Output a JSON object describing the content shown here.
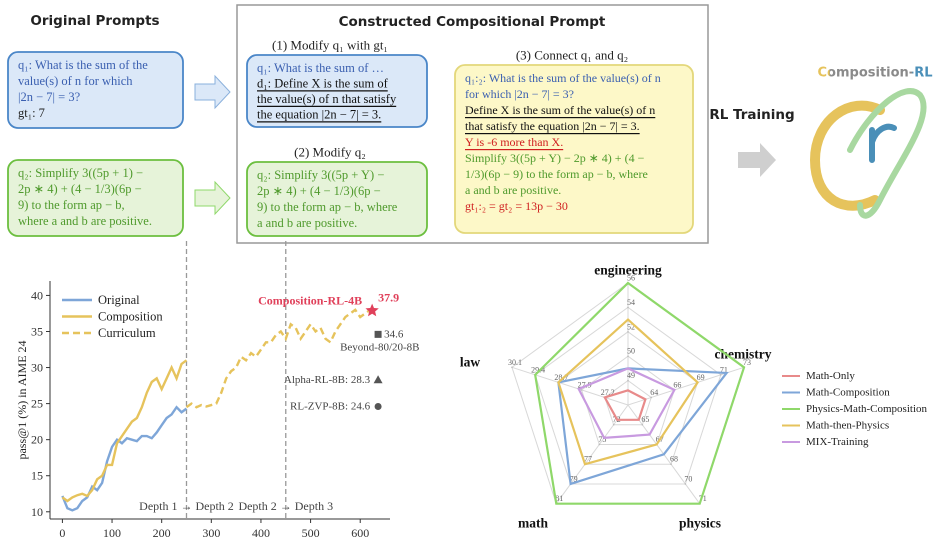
{
  "diagram": {
    "original_title": "Original Prompts",
    "constructed_title": "Constructed Compositional Prompt",
    "step1": "(1) Modify q₁ with gt₁",
    "step2": "(2) Modify q₂",
    "step3": "(3) Connect q₁ and q₂",
    "rl_training": "RL Training",
    "logo": "Composition-RL",
    "boxes": [
      {
        "fill": "#dbe8f8",
        "stroke": "#4a86c8",
        "lines": [
          {
            "text": "q₁: What is the sum of the",
            "color": "#3a5fb0"
          },
          {
            "text": "value(s) of n for which",
            "color": "#3a5fb0"
          },
          {
            "text": "|2n − 7| = 3?",
            "color": "#3a5fb0"
          },
          {
            "text": "gt₁:          7",
            "color": "#222"
          }
        ]
      },
      {
        "fill": "#e6f3d9",
        "stroke": "#6cbf3f",
        "lines": [
          {
            "text": "q₂: Simplify 3((5p + 1) −",
            "color": "#4f9a2c"
          },
          {
            "text": "2p ∗ 4) + (4 − 1/3)(6p −",
            "color": "#4f9a2c"
          },
          {
            "text": "9) to the form ap − b,",
            "color": "#4f9a2c"
          },
          {
            "text": "where a and b are positive.",
            "color": "#4f9a2c"
          }
        ]
      },
      {
        "fill": "#dbe8f8",
        "stroke": "#4a86c8",
        "lines": [
          {
            "text": "q₁: What is the sum of …",
            "color": "#3a5fb0"
          },
          {
            "text": "d₁: Define X is the sum of",
            "color": "#111",
            "underline": true
          },
          {
            "text": "the value(s) of n that satisfy",
            "color": "#111",
            "underline": true
          },
          {
            "text": "the equation |2n − 7| = 3.",
            "color": "#111",
            "underline": true
          }
        ]
      },
      {
        "fill": "#e6f3d9",
        "stroke": "#6cbf3f",
        "lines": [
          {
            "text": "q₂: Simplify 3((5p + Y) −",
            "color": "#4f9a2c"
          },
          {
            "text": "2p ∗ 4) + (4 − 1/3)(6p −",
            "color": "#4f9a2c"
          },
          {
            "text": "9) to the form ap − b, where",
            "color": "#4f9a2c"
          },
          {
            "text": "a and b are positive.",
            "color": "#4f9a2c"
          }
        ]
      },
      {
        "fill": "#fdf8c8",
        "stroke": "#e3d77a",
        "lines": [
          {
            "text": "q₁:₂: What is the sum of the value(s) of n",
            "color": "#3a5fb0"
          },
          {
            "text": "for which |2n − 7| = 3?",
            "color": "#3a5fb0"
          },
          {
            "text": "Define X is the sum of the value(s) of n",
            "color": "#111",
            "underline": true
          },
          {
            "text": "that satisfy the equation |2n − 7| = 3.",
            "color": "#111",
            "underline": true
          },
          {
            "text": "Y is -6 more than X.",
            "color": "#d02020",
            "underline": true
          },
          {
            "text": "Simplify 3((5p + Y) − 2p ∗ 4) + (4 −",
            "color": "#4f9a2c"
          },
          {
            "text": "1/3)(6p − 9) to the form ap − b, where",
            "color": "#4f9a2c"
          },
          {
            "text": "a and b are positive.",
            "color": "#4f9a2c"
          },
          {
            "text": "gt₁:₂ = gt₂ = 13p − 30",
            "color": "#d02020"
          }
        ]
      }
    ]
  },
  "chart_data": [
    {
      "type": "line",
      "ylabel": "pass@1 (%) in AIME 24",
      "xlim": [
        -25,
        660
      ],
      "ylim": [
        9,
        42
      ],
      "xticks": [
        0,
        100,
        200,
        300,
        400,
        500,
        600
      ],
      "yticks": [
        10,
        15,
        20,
        25,
        30,
        35,
        40
      ],
      "grid": false,
      "legend": "upper left",
      "series": [
        {
          "name": "Original",
          "color": "#7ea6d8",
          "dash": false,
          "x": [
            0,
            10,
            20,
            30,
            40,
            50,
            60,
            70,
            80,
            90,
            100,
            110,
            120,
            130,
            140,
            150,
            160,
            170,
            180,
            190,
            200,
            210,
            220,
            230,
            240,
            250
          ],
          "values": [
            12.2,
            10.5,
            10.2,
            10.5,
            11.5,
            12,
            13.5,
            13,
            14,
            17,
            19,
            20,
            19.5,
            20.2,
            20,
            19.8,
            20.5,
            20.5,
            20.2,
            21,
            22,
            23,
            23.5,
            24.5,
            23.8,
            24.3
          ]
        },
        {
          "name": "Composition",
          "color": "#e6c35c",
          "dash": false,
          "x": [
            0,
            10,
            20,
            30,
            40,
            50,
            60,
            70,
            80,
            90,
            100,
            110,
            120,
            130,
            140,
            150,
            160,
            170,
            180,
            190,
            200,
            210,
            220,
            230,
            240,
            250
          ],
          "values": [
            12,
            11.5,
            12,
            12.3,
            12.5,
            12.2,
            13,
            14.5,
            15,
            16.5,
            16.5,
            19.5,
            20.5,
            21.5,
            22.5,
            23,
            24.5,
            26.5,
            28,
            28.5,
            27,
            28.5,
            30,
            28.5,
            30.5,
            31
          ]
        },
        {
          "name": "Curriculum",
          "color": "#e6c35c",
          "dash": true,
          "x": [
            250,
            260,
            270,
            280,
            290,
            300,
            310,
            320,
            330,
            340,
            350,
            360,
            370,
            380,
            390,
            400,
            410,
            420,
            430,
            440,
            450,
            460,
            470,
            480,
            490,
            500,
            510,
            520,
            530,
            540,
            550,
            560,
            570,
            580,
            590,
            600,
            610,
            620
          ],
          "values": [
            24.5,
            25,
            24.5,
            24.8,
            24.6,
            24.8,
            25,
            26.5,
            28.5,
            29.5,
            30,
            31.5,
            31,
            32,
            31.5,
            32.5,
            33.5,
            33.5,
            34.5,
            35,
            34,
            36,
            35.5,
            34,
            35,
            36,
            35,
            35.5,
            34,
            33.5,
            35,
            36,
            37,
            37.5,
            38,
            37,
            37.5,
            38
          ]
        }
      ],
      "vlines": [
        {
          "x": 250,
          "label": "Depth 1 → Depth 2"
        },
        {
          "x": 450,
          "label": "Depth 2 → Depth 3"
        }
      ],
      "points": [
        {
          "label": "Composition-RL-4B",
          "value_label": "37.9",
          "x": 624,
          "y": 37.9,
          "marker": "star",
          "color": "#e0405a"
        },
        {
          "label": "Beyond-80/20-8B",
          "value_label": "34.6",
          "x": 636,
          "y": 34.6,
          "marker": "square",
          "color": "#555555"
        },
        {
          "label": "Alpha-RL-8B: 28.3",
          "x": 636,
          "y": 28.3,
          "marker": "triangle",
          "color": "#555555"
        },
        {
          "label": "RL-ZVP-8B: 24.6",
          "x": 636,
          "y": 24.6,
          "marker": "circle",
          "color": "#555555"
        }
      ]
    },
    {
      "type": "radar",
      "legend": "right",
      "axes": [
        {
          "name": "engineering",
          "rlim": [
            48,
            56
          ],
          "ticks": [
            49,
            50,
            52,
            54,
            56
          ]
        },
        {
          "name": "chemistry",
          "rlim": [
            62,
            73
          ],
          "ticks": [
            64,
            66,
            69,
            71,
            73
          ]
        },
        {
          "name": "physics",
          "rlim": [
            63,
            71
          ],
          "ticks": [
            65,
            67,
            68,
            70,
            71
          ]
        },
        {
          "name": "math",
          "rlim": [
            70,
            81
          ],
          "ticks": [
            72,
            75,
            77,
            79,
            81
          ]
        },
        {
          "name": "law",
          "rlim": [
            26.5,
            30.1
          ],
          "ticks": [
            27.2,
            27.9,
            28.7,
            29.4,
            30.1
          ]
        }
      ],
      "series": [
        {
          "name": "Math-Only",
          "color": "#e88a8a",
          "values": [
            48.6,
            63.5,
            64.5,
            71.5,
            27.2
          ]
        },
        {
          "name": "Math-Composition",
          "color": "#7ea6d8",
          "values": [
            49.5,
            71.5,
            67.5,
            79,
            28.7
          ]
        },
        {
          "name": "Physics-Math-Composition",
          "color": "#8fd86a",
          "values": [
            56,
            73,
            71,
            81,
            29.4
          ]
        },
        {
          "name": "Math-then-Physics",
          "color": "#e6c35c",
          "values": [
            53,
            69,
            67,
            77,
            28.7
          ]
        },
        {
          "name": "MIX-Training",
          "color": "#c89ae0",
          "values": [
            49.5,
            66,
            66,
            74,
            28
          ]
        }
      ]
    }
  ]
}
